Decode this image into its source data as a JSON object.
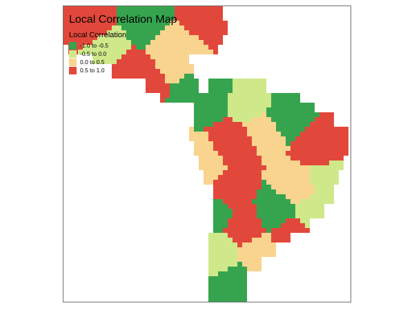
{
  "map": {
    "title": "Local Correlation Map",
    "legend": {
      "title": "Local Correlation",
      "classes": [
        {
          "label": "-1.0 to -0.5",
          "color": "#36a44f"
        },
        {
          "label": "-0.5 to 0.0",
          "color": "#cfe88a"
        },
        {
          "label": "0.0 to 0.5",
          "color": "#f8d48e"
        },
        {
          "label": "0.5 to 1.0",
          "color": "#e2473b"
        }
      ]
    }
  }
}
